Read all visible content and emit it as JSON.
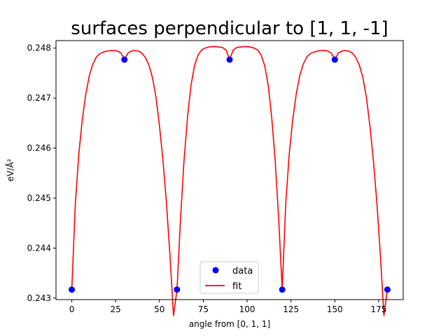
{
  "chart_data": {
    "type": "scatter",
    "title": "surfaces perpendicular to [1, 1, -1]",
    "xlabel": "angle from [0, 1, 1]",
    "ylabel": "eV/Å²",
    "xlim": [
      -9,
      189
    ],
    "ylim": [
      0.24297,
      0.24815
    ],
    "xticks": [
      0,
      25,
      50,
      75,
      100,
      125,
      150,
      175
    ],
    "yticks": [
      0.243,
      0.244,
      0.245,
      0.246,
      0.247,
      0.248
    ],
    "ytick_labels": [
      "0.243",
      "0.244",
      "0.245",
      "0.246",
      "0.247",
      "0.248"
    ],
    "grid": false,
    "legend_position": "lower center",
    "series": [
      {
        "name": "data",
        "kind": "scatter",
        "color": "#0000ff",
        "x": [
          0,
          30,
          60,
          90,
          120,
          150,
          180
        ],
        "y": [
          0.24317,
          0.24777,
          0.24317,
          0.24777,
          0.24317,
          0.24777,
          0.24317
        ]
      },
      {
        "name": "fit",
        "kind": "line",
        "color": "#ff0000",
        "x": [
          0,
          2,
          4,
          6,
          8,
          10,
          12,
          14,
          16,
          18,
          20,
          22,
          24,
          25,
          26,
          28,
          30,
          32,
          34,
          35,
          36,
          38,
          40,
          42,
          44,
          46,
          48,
          50,
          52,
          54,
          56,
          58,
          60,
          62,
          64,
          66,
          68,
          70,
          72,
          74,
          76,
          78,
          80,
          82,
          84,
          85,
          86,
          88,
          90,
          92,
          94,
          95,
          96,
          98,
          100,
          102,
          104,
          106,
          108,
          110,
          112,
          114,
          116,
          118,
          120,
          122,
          124,
          126,
          128,
          130,
          132,
          134,
          136,
          138,
          140,
          142,
          144,
          145,
          146,
          148,
          150,
          152,
          154,
          155,
          156,
          158,
          160,
          162,
          164,
          166,
          168,
          170,
          172,
          174,
          176,
          178,
          180
        ],
        "y": [
          0.24317,
          0.24487,
          0.24588,
          0.24657,
          0.24708,
          0.24745,
          0.24768,
          0.24782,
          0.24789,
          0.24792,
          0.24794,
          0.24795,
          0.24795,
          0.24795,
          0.24794,
          0.2479,
          0.24777,
          0.2479,
          0.24794,
          0.24795,
          0.24795,
          0.24794,
          0.2479,
          0.24781,
          0.24766,
          0.24741,
          0.24702,
          0.24645,
          0.24575,
          0.2449,
          0.24385,
          0.24265,
          0.24317,
          0.24458,
          0.24575,
          0.24662,
          0.24726,
          0.24765,
          0.24786,
          0.24796,
          0.248,
          0.24802,
          0.24803,
          0.24803,
          0.24802,
          0.24802,
          0.24801,
          0.24796,
          0.24777,
          0.24796,
          0.24801,
          0.24802,
          0.24802,
          0.24803,
          0.24803,
          0.24802,
          0.248,
          0.24796,
          0.24786,
          0.24765,
          0.24726,
          0.24662,
          0.24575,
          0.24458,
          0.24317,
          0.24488,
          0.24588,
          0.24657,
          0.24708,
          0.24745,
          0.24768,
          0.24782,
          0.24789,
          0.24792,
          0.24794,
          0.24795,
          0.24795,
          0.24795,
          0.24794,
          0.2479,
          0.24777,
          0.2479,
          0.24794,
          0.24795,
          0.24795,
          0.24794,
          0.2479,
          0.24781,
          0.24766,
          0.24741,
          0.24702,
          0.24645,
          0.24575,
          0.2449,
          0.24385,
          0.24265,
          0.24317
        ]
      }
    ]
  }
}
